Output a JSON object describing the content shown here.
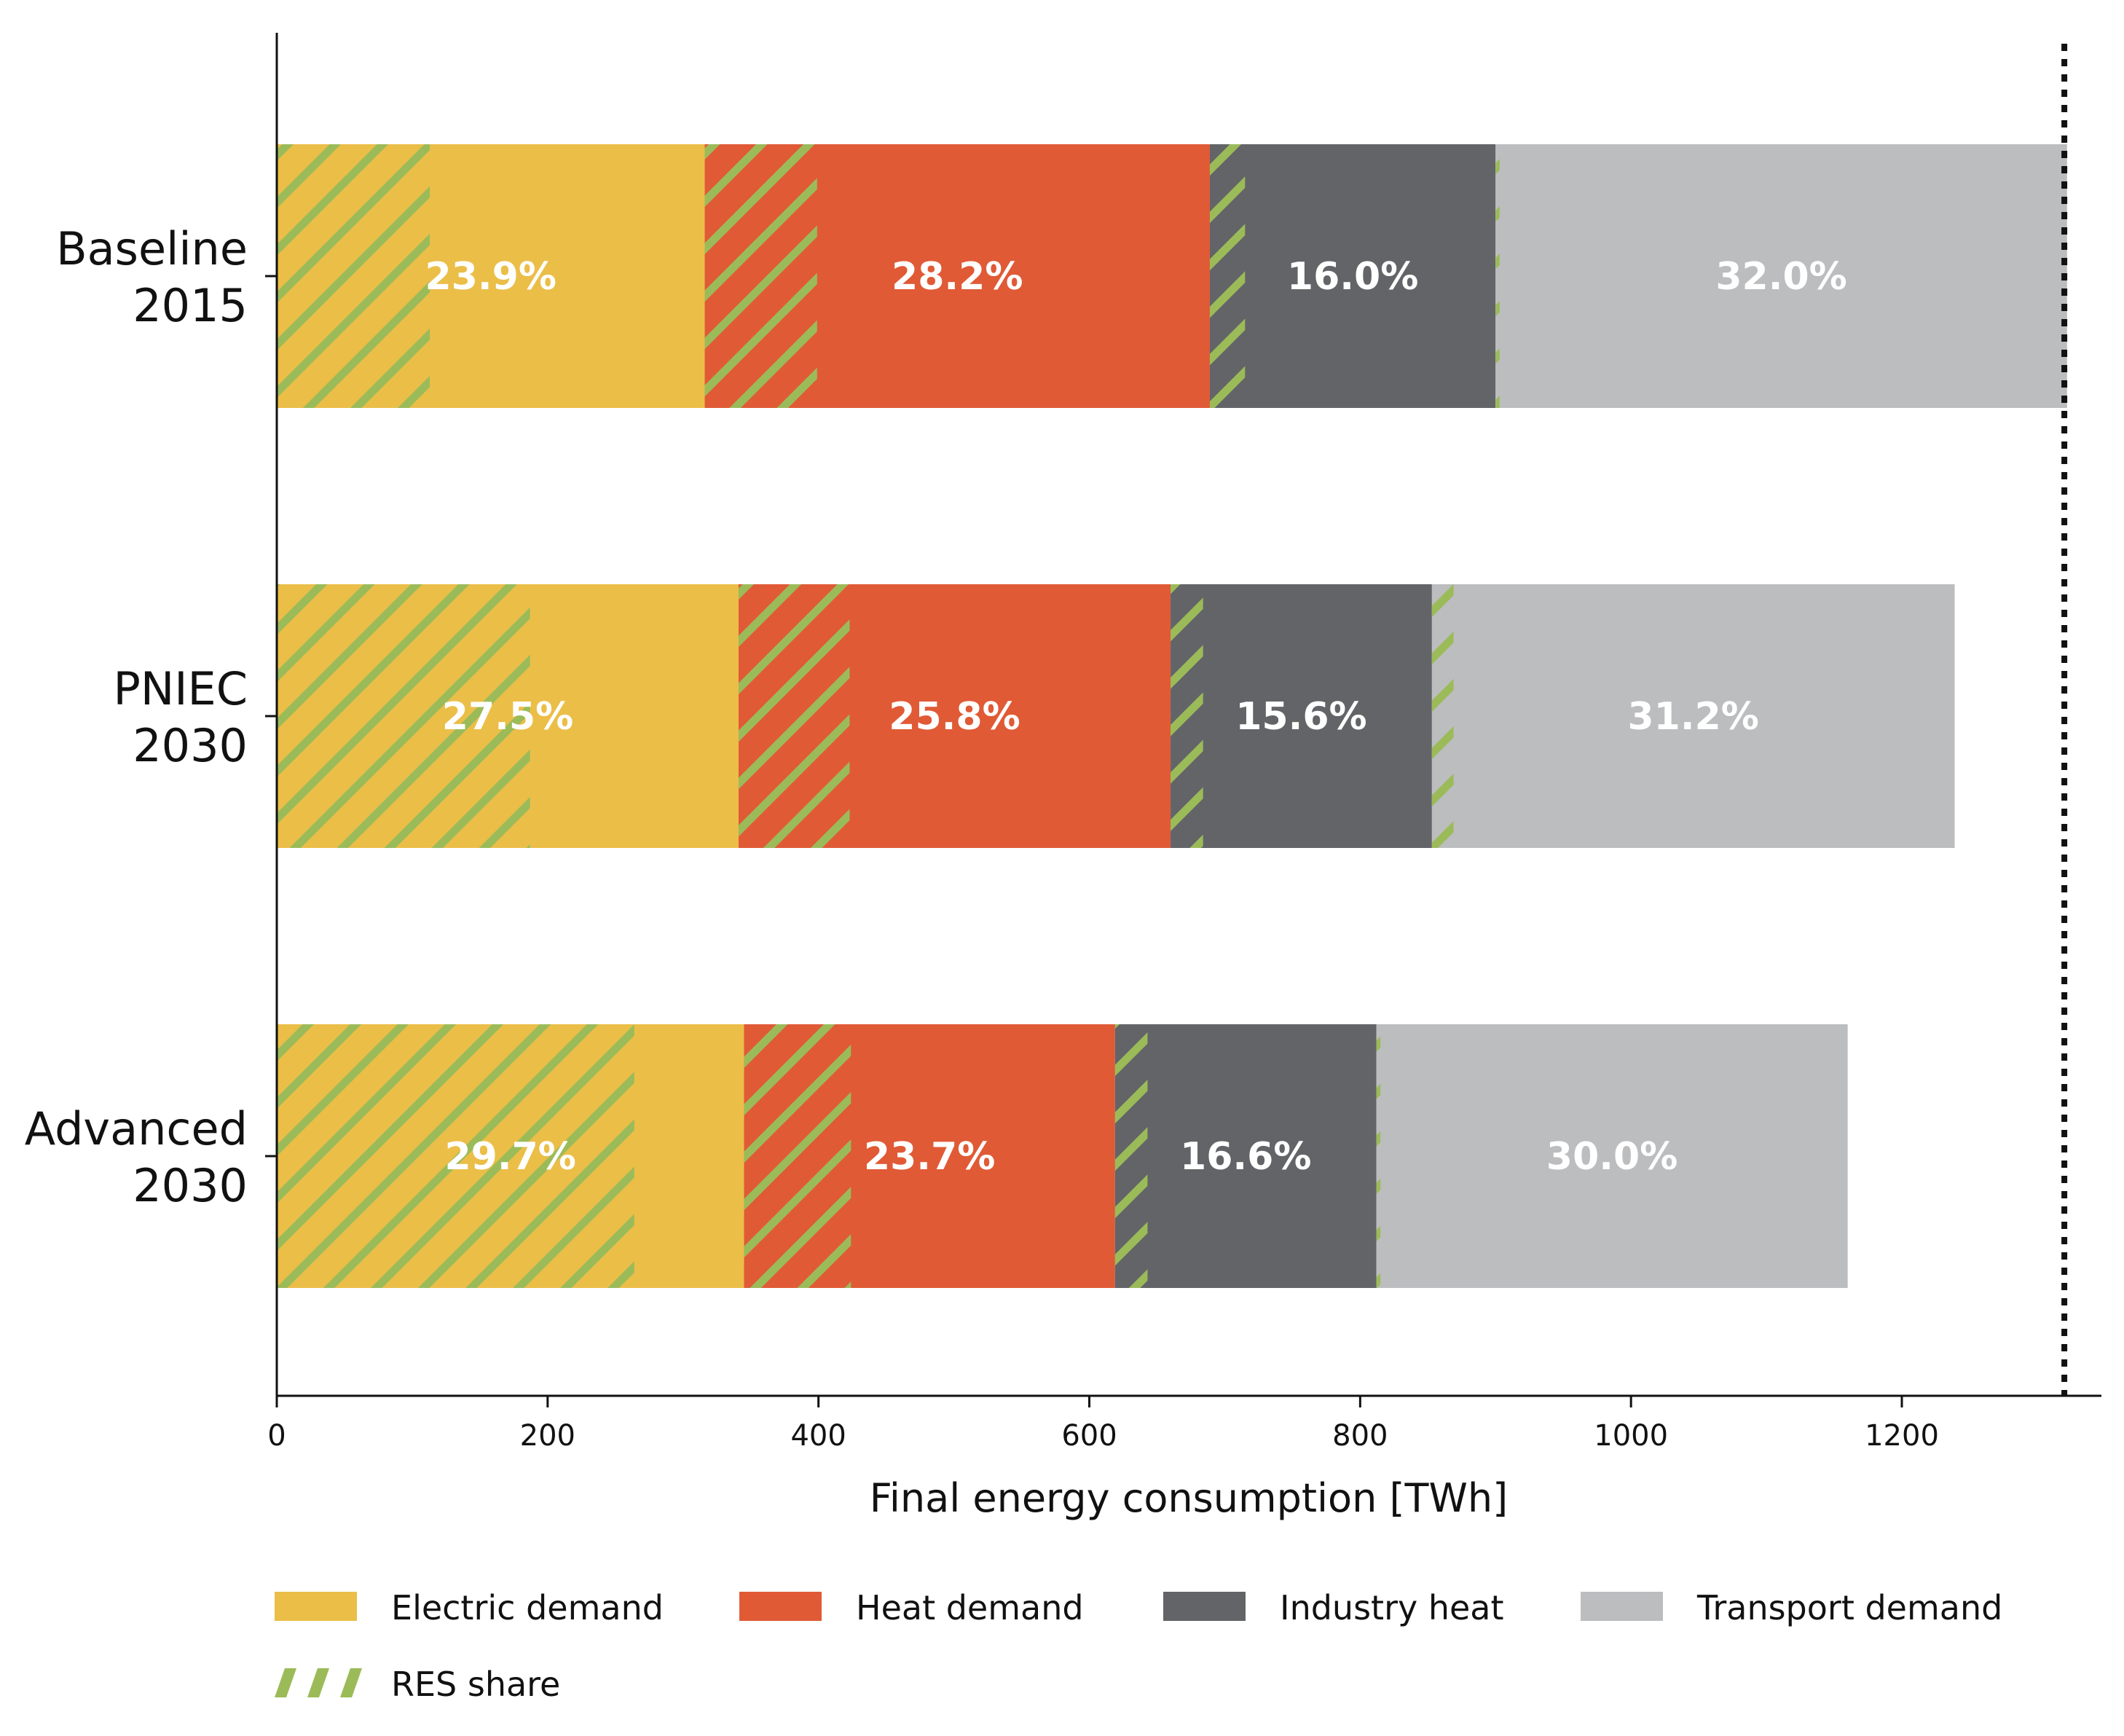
{
  "chart_data": {
    "type": "bar",
    "orientation": "horizontal",
    "stacked": true,
    "xlabel": "Final energy consumption [TWh]",
    "xlim": [
      0,
      1380
    ],
    "xticks": [
      0,
      200,
      400,
      600,
      800,
      1000,
      1200
    ],
    "reference_line": {
      "value": 1320,
      "style": "dotted"
    },
    "categories": [
      "Baseline\n2015",
      "PNIEC\n2030",
      "Advanced\n2030"
    ],
    "category_lines": [
      [
        "Baseline",
        "2015"
      ],
      [
        "PNIEC",
        "2030"
      ],
      [
        "Advanced",
        "2030"
      ]
    ],
    "series": [
      {
        "name": "Electric demand",
        "color": "#EBBE48",
        "values": [
          316,
          341,
          345
        ],
        "res_values": [
          113,
          187,
          264
        ],
        "labels": [
          "23.9%",
          "27.5%",
          "29.7%"
        ]
      },
      {
        "name": "Heat demand",
        "color": "#E05A36",
        "values": [
          373,
          319,
          274
        ],
        "res_values": [
          83,
          82,
          79
        ],
        "labels": [
          "28.2%",
          "25.8%",
          "23.7%"
        ]
      },
      {
        "name": "Industry heat",
        "color": "#636467",
        "values": [
          211,
          193,
          193
        ],
        "res_values": [
          26,
          24,
          24
        ],
        "labels": [
          "16.0%",
          "15.6%",
          "16.6%"
        ]
      },
      {
        "name": "Transport demand",
        "color": "#BCBDBF",
        "values": [
          422,
          386,
          348
        ],
        "res_values": [
          3,
          16,
          3
        ],
        "labels": [
          "32.0%",
          "31.2%",
          "30.0%"
        ]
      }
    ],
    "res_share": {
      "name": "RES share",
      "color": "#9BBB59"
    },
    "legend": [
      {
        "name": "Electric demand",
        "color": "#EBBE48"
      },
      {
        "name": "Heat demand",
        "color": "#E05A36"
      },
      {
        "name": "Industry heat",
        "color": "#636467"
      },
      {
        "name": "Transport demand",
        "color": "#BCBDBF"
      },
      {
        "name": "RES share",
        "color": "#9BBB59",
        "hatched": true
      }
    ],
    "legend_placement": "bottom"
  }
}
